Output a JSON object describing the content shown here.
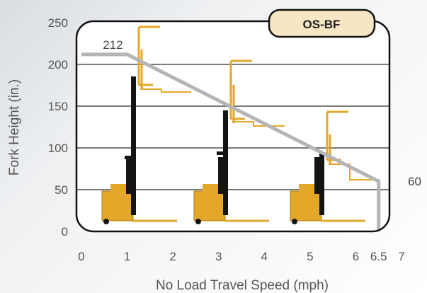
{
  "chart_data": {
    "type": "line",
    "badge": "OS-BF",
    "xlabel": "No Load Travel Speed (mph)",
    "ylabel": "Fork Height (in.)",
    "xlim": [
      0,
      7
    ],
    "ylim": [
      0,
      250
    ],
    "x_ticks": [
      "0",
      "1",
      "2",
      "3",
      "4",
      "5",
      "6",
      "6.5",
      "7"
    ],
    "x_tick_values": [
      0,
      1,
      2,
      3,
      4,
      5,
      6,
      6.5,
      7
    ],
    "y_ticks": [
      "0",
      "50",
      "100",
      "150",
      "200",
      "250"
    ],
    "y_tick_values": [
      0,
      50,
      100,
      150,
      200,
      250
    ],
    "grid": true,
    "series": [
      {
        "x": [
          0,
          1,
          6.5,
          6.5
        ],
        "y": [
          212,
          212,
          60,
          0
        ],
        "color": "#b5b5b5"
      }
    ],
    "annotations": [
      {
        "text": "212",
        "x": 1,
        "y": 212
      },
      {
        "text": "60",
        "x": 6.5,
        "y": 60
      }
    ],
    "colors": {
      "plot_background": "#ffffff",
      "plot_border": "#111111",
      "grid": "#2a2a2a",
      "badge_fill": "#f7e6c4",
      "truck_yellow": "#e3a72a",
      "truck_black": "#141414"
    }
  }
}
